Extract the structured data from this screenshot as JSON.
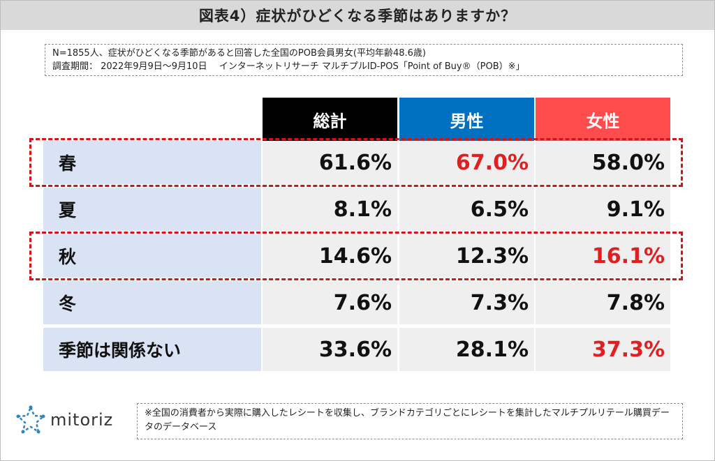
{
  "title": "図表4）症状がひどくなる季節はありますか？",
  "notes": [
    "N=1855人、症状がひどくなる季節があると回答した全国のPOB会員男女(平均年齢48.6歳)",
    "調査期間： 2022年9月9日～9月10日　 インターネットリサーチ マルチプルID-POS「Point of Buy®（POB）※」"
  ],
  "footer_note": "※全国の消費者から実際に購入したレシートを収集し、ブランドカテゴリごとにレシートを集計したマルチプルリテール購買データのデータベース",
  "logo_text": "mitoriz",
  "colors": {
    "total": "#000000",
    "male": "#0070c0",
    "female": "#ff4d4d",
    "highlight": "#d0161b",
    "red_text": "#e02020",
    "label_bg": "#dae3f3",
    "cell_bg": "#efefef"
  },
  "chart_data": {
    "type": "table",
    "columns": [
      "総計",
      "男性",
      "女性"
    ],
    "rows": [
      {
        "label": "春",
        "values": [
          "61.6%",
          "67.0%",
          "58.0%"
        ],
        "red": [
          false,
          true,
          false
        ],
        "highlighted": true
      },
      {
        "label": "夏",
        "values": [
          "8.1%",
          "6.5%",
          "9.1%"
        ],
        "red": [
          false,
          false,
          false
        ],
        "highlighted": false
      },
      {
        "label": "秋",
        "values": [
          "14.6%",
          "12.3%",
          "16.1%"
        ],
        "red": [
          false,
          false,
          true
        ],
        "highlighted": true
      },
      {
        "label": "冬",
        "values": [
          "7.6%",
          "7.3%",
          "7.8%"
        ],
        "red": [
          false,
          false,
          false
        ],
        "highlighted": false
      },
      {
        "label": "季節は関係ない",
        "values": [
          "33.6%",
          "28.1%",
          "37.3%"
        ],
        "red": [
          false,
          false,
          true
        ],
        "highlighted": false
      }
    ]
  }
}
